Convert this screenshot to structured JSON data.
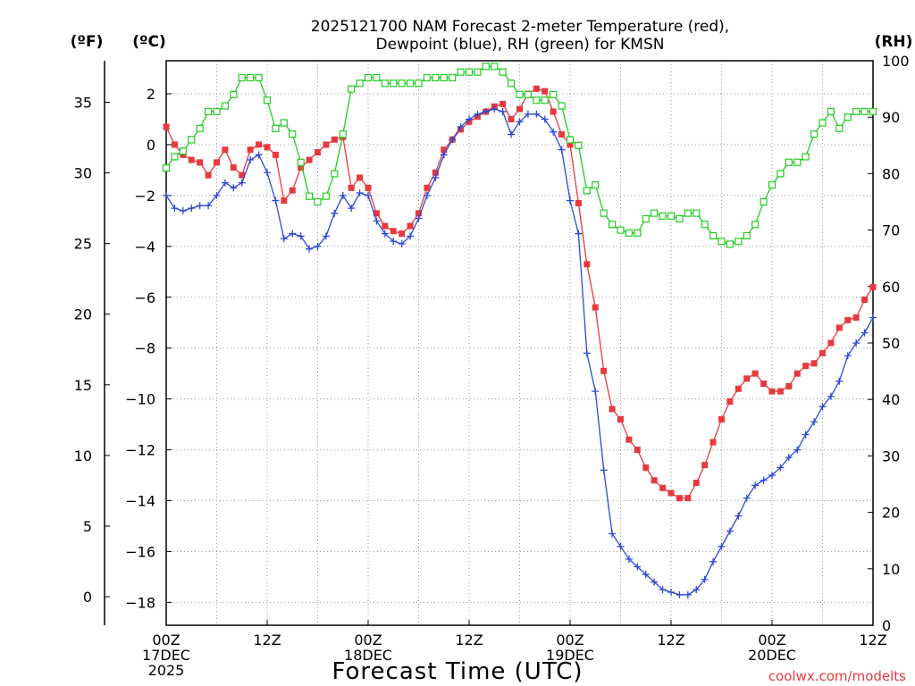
{
  "chart_data": {
    "type": "line",
    "title_line1": "2025121700 NAM Forecast 2-meter Temperature (red),",
    "title_line2": "Dewpoint (blue), RH (green) for KMSN",
    "xlabel": "Forecast Time (UTC)",
    "credit": "coolwx.com/modelts",
    "units": {
      "fahrenheit": "(ºF)",
      "celsius": "(ºC)",
      "rh": "(RH)"
    },
    "x_range_hours": [
      0,
      84
    ],
    "celsius_range": [
      -18.9,
      3.3
    ],
    "rh_range": [
      0,
      100
    ],
    "x_ticks": [
      {
        "h": 0,
        "l1": "00Z",
        "l2": "17DEC",
        "l3": "2025"
      },
      {
        "h": 12,
        "l1": "12Z",
        "l2": "",
        "l3": ""
      },
      {
        "h": 24,
        "l1": "00Z",
        "l2": "18DEC",
        "l3": ""
      },
      {
        "h": 36,
        "l1": "12Z",
        "l2": "",
        "l3": ""
      },
      {
        "h": 48,
        "l1": "00Z",
        "l2": "19DEC",
        "l3": ""
      },
      {
        "h": 60,
        "l1": "12Z",
        "l2": "",
        "l3": ""
      },
      {
        "h": 72,
        "l1": "00Z",
        "l2": "20DEC",
        "l3": ""
      },
      {
        "h": 84,
        "l1": "12Z",
        "l2": "",
        "l3": ""
      }
    ],
    "celsius_ticks": [
      2,
      0,
      -2,
      -4,
      -6,
      -8,
      -10,
      -12,
      -14,
      -16,
      -18
    ],
    "celsius_tick_labels": [
      "2",
      "0",
      "−2",
      "−4",
      "−6",
      "−8",
      "−10",
      "−12",
      "−14",
      "−16",
      "−18"
    ],
    "fahrenheit_ticks": [
      35,
      30,
      25,
      20,
      15,
      10,
      5,
      0
    ],
    "rh_ticks": [
      100,
      90,
      80,
      70,
      60,
      50,
      40,
      30,
      20,
      10,
      0
    ],
    "series": [
      {
        "name": "Temperature (red)",
        "color": "#e8383d",
        "axis": "celsius",
        "marker": "filled-square",
        "points": [
          [
            0,
            0.7
          ],
          [
            1,
            0.0
          ],
          [
            2,
            -0.4
          ],
          [
            3,
            -0.6
          ],
          [
            4,
            -0.7
          ],
          [
            5,
            -1.2
          ],
          [
            6,
            -0.7
          ],
          [
            7,
            -0.2
          ],
          [
            8,
            -0.9
          ],
          [
            9,
            -1.2
          ],
          [
            10,
            -0.2
          ],
          [
            11,
            0.0
          ],
          [
            12,
            -0.1
          ],
          [
            13,
            -0.4
          ],
          [
            14,
            -2.2
          ],
          [
            15,
            -1.8
          ],
          [
            16,
            -0.9
          ],
          [
            17,
            -0.6
          ],
          [
            18,
            -0.3
          ],
          [
            19,
            0.0
          ],
          [
            20,
            0.2
          ],
          [
            21,
            0.3
          ],
          [
            22,
            -1.7
          ],
          [
            23,
            -1.3
          ],
          [
            24,
            -1.7
          ],
          [
            25,
            -2.7
          ],
          [
            26,
            -3.2
          ],
          [
            27,
            -3.4
          ],
          [
            28,
            -3.5
          ],
          [
            29,
            -3.2
          ],
          [
            30,
            -2.7
          ],
          [
            31,
            -1.7
          ],
          [
            32,
            -1.1
          ],
          [
            33,
            -0.2
          ],
          [
            34,
            0.2
          ],
          [
            35,
            0.6
          ],
          [
            36,
            0.9
          ],
          [
            37,
            1.1
          ],
          [
            38,
            1.3
          ],
          [
            39,
            1.5
          ],
          [
            40,
            1.6
          ],
          [
            41,
            1.0
          ],
          [
            42,
            1.4
          ],
          [
            43,
            2.0
          ],
          [
            44,
            2.2
          ],
          [
            45,
            2.1
          ],
          [
            46,
            1.3
          ],
          [
            47,
            0.4
          ],
          [
            48,
            0.0
          ],
          [
            49,
            -2.3
          ],
          [
            50,
            -4.7
          ],
          [
            51,
            -6.4
          ],
          [
            52,
            -8.9
          ],
          [
            53,
            -10.4
          ],
          [
            54,
            -10.8
          ],
          [
            55,
            -11.6
          ],
          [
            56,
            -12.0
          ],
          [
            57,
            -12.7
          ],
          [
            58,
            -13.2
          ],
          [
            59,
            -13.5
          ],
          [
            60,
            -13.7
          ],
          [
            61,
            -13.9
          ],
          [
            62,
            -13.9
          ],
          [
            63,
            -13.3
          ],
          [
            64,
            -12.6
          ],
          [
            65,
            -11.7
          ],
          [
            66,
            -10.8
          ],
          [
            67,
            -10.1
          ],
          [
            68,
            -9.6
          ],
          [
            69,
            -9.2
          ],
          [
            70,
            -9.0
          ],
          [
            71,
            -9.4
          ],
          [
            72,
            -9.7
          ],
          [
            73,
            -9.7
          ],
          [
            74,
            -9.5
          ],
          [
            75,
            -9.0
          ],
          [
            76,
            -8.7
          ],
          [
            77,
            -8.6
          ],
          [
            78,
            -8.2
          ],
          [
            79,
            -7.8
          ],
          [
            80,
            -7.2
          ],
          [
            81,
            -6.9
          ],
          [
            82,
            -6.8
          ],
          [
            83,
            -6.1
          ],
          [
            84,
            -5.6
          ]
        ]
      },
      {
        "name": "Dewpoint (blue)",
        "color": "#2c49d6",
        "axis": "celsius",
        "marker": "plus",
        "points": [
          [
            0,
            -2.0
          ],
          [
            1,
            -2.5
          ],
          [
            2,
            -2.6
          ],
          [
            3,
            -2.5
          ],
          [
            4,
            -2.4
          ],
          [
            5,
            -2.4
          ],
          [
            6,
            -2.0
          ],
          [
            7,
            -1.5
          ],
          [
            8,
            -1.7
          ],
          [
            9,
            -1.5
          ],
          [
            10,
            -0.6
          ],
          [
            11,
            -0.4
          ],
          [
            12,
            -1.1
          ],
          [
            13,
            -2.2
          ],
          [
            14,
            -3.7
          ],
          [
            15,
            -3.5
          ],
          [
            16,
            -3.6
          ],
          [
            17,
            -4.1
          ],
          [
            18,
            -4.0
          ],
          [
            19,
            -3.6
          ],
          [
            20,
            -2.7
          ],
          [
            21,
            -2.0
          ],
          [
            22,
            -2.5
          ],
          [
            23,
            -1.9
          ],
          [
            24,
            -2.0
          ],
          [
            25,
            -3.0
          ],
          [
            26,
            -3.5
          ],
          [
            27,
            -3.8
          ],
          [
            28,
            -3.9
          ],
          [
            29,
            -3.6
          ],
          [
            30,
            -2.9
          ],
          [
            31,
            -2.0
          ],
          [
            32,
            -1.3
          ],
          [
            33,
            -0.4
          ],
          [
            34,
            0.2
          ],
          [
            35,
            0.7
          ],
          [
            36,
            1.0
          ],
          [
            37,
            1.2
          ],
          [
            38,
            1.3
          ],
          [
            39,
            1.4
          ],
          [
            40,
            1.3
          ],
          [
            41,
            0.4
          ],
          [
            42,
            0.9
          ],
          [
            43,
            1.2
          ],
          [
            44,
            1.2
          ],
          [
            45,
            1.0
          ],
          [
            46,
            0.5
          ],
          [
            47,
            -0.2
          ],
          [
            48,
            -2.2
          ],
          [
            49,
            -3.5
          ],
          [
            50,
            -8.2
          ],
          [
            51,
            -9.7
          ],
          [
            52,
            -12.8
          ],
          [
            53,
            -15.3
          ],
          [
            54,
            -15.8
          ],
          [
            55,
            -16.3
          ],
          [
            56,
            -16.6
          ],
          [
            57,
            -16.9
          ],
          [
            58,
            -17.2
          ],
          [
            59,
            -17.5
          ],
          [
            60,
            -17.6
          ],
          [
            61,
            -17.7
          ],
          [
            62,
            -17.7
          ],
          [
            63,
            -17.5
          ],
          [
            64,
            -17.1
          ],
          [
            65,
            -16.4
          ],
          [
            66,
            -15.8
          ],
          [
            67,
            -15.2
          ],
          [
            68,
            -14.6
          ],
          [
            69,
            -13.9
          ],
          [
            70,
            -13.4
          ],
          [
            71,
            -13.2
          ],
          [
            72,
            -13.0
          ],
          [
            73,
            -12.7
          ],
          [
            74,
            -12.3
          ],
          [
            75,
            -12.0
          ],
          [
            76,
            -11.4
          ],
          [
            77,
            -10.9
          ],
          [
            78,
            -10.3
          ],
          [
            79,
            -9.9
          ],
          [
            80,
            -9.3
          ],
          [
            81,
            -8.3
          ],
          [
            82,
            -7.8
          ],
          [
            83,
            -7.4
          ],
          [
            84,
            -6.8
          ]
        ]
      },
      {
        "name": "RH (green)",
        "color": "#22cc22",
        "axis": "rh",
        "marker": "open-square",
        "points": [
          [
            0,
            81
          ],
          [
            1,
            83
          ],
          [
            2,
            84
          ],
          [
            3,
            86
          ],
          [
            4,
            88
          ],
          [
            5,
            91
          ],
          [
            6,
            91
          ],
          [
            7,
            92
          ],
          [
            8,
            94
          ],
          [
            9,
            97
          ],
          [
            10,
            97
          ],
          [
            11,
            97
          ],
          [
            12,
            93
          ],
          [
            13,
            88
          ],
          [
            14,
            89
          ],
          [
            15,
            87
          ],
          [
            16,
            82
          ],
          [
            17,
            76
          ],
          [
            18,
            75
          ],
          [
            19,
            76
          ],
          [
            20,
            80
          ],
          [
            21,
            87
          ],
          [
            22,
            95
          ],
          [
            23,
            96
          ],
          [
            24,
            97
          ],
          [
            25,
            97
          ],
          [
            26,
            96
          ],
          [
            27,
            96
          ],
          [
            28,
            96
          ],
          [
            29,
            96
          ],
          [
            30,
            96
          ],
          [
            31,
            97
          ],
          [
            32,
            97
          ],
          [
            33,
            97
          ],
          [
            34,
            97
          ],
          [
            35,
            98
          ],
          [
            36,
            98
          ],
          [
            37,
            98
          ],
          [
            38,
            99
          ],
          [
            39,
            99
          ],
          [
            40,
            98
          ],
          [
            41,
            96
          ],
          [
            42,
            94
          ],
          [
            43,
            94
          ],
          [
            44,
            93
          ],
          [
            45,
            93
          ],
          [
            46,
            94
          ],
          [
            47,
            92
          ],
          [
            48,
            86
          ],
          [
            49,
            85
          ],
          [
            50,
            77
          ],
          [
            51,
            78
          ],
          [
            52,
            73
          ],
          [
            53,
            71
          ],
          [
            54,
            70
          ],
          [
            55,
            69.5
          ],
          [
            56,
            69.5
          ],
          [
            57,
            72
          ],
          [
            58,
            73
          ],
          [
            59,
            72.5
          ],
          [
            60,
            72.5
          ],
          [
            61,
            72
          ],
          [
            62,
            73
          ],
          [
            63,
            73
          ],
          [
            64,
            71
          ],
          [
            65,
            69
          ],
          [
            66,
            68
          ],
          [
            67,
            67.5
          ],
          [
            68,
            68
          ],
          [
            69,
            69
          ],
          [
            70,
            71
          ],
          [
            71,
            75
          ],
          [
            72,
            78
          ],
          [
            73,
            80
          ],
          [
            74,
            82
          ],
          [
            75,
            82
          ],
          [
            76,
            83
          ],
          [
            77,
            87
          ],
          [
            78,
            89
          ],
          [
            79,
            91
          ],
          [
            80,
            88
          ],
          [
            81,
            90
          ],
          [
            82,
            91
          ],
          [
            83,
            91
          ],
          [
            84,
            91
          ]
        ]
      }
    ]
  }
}
